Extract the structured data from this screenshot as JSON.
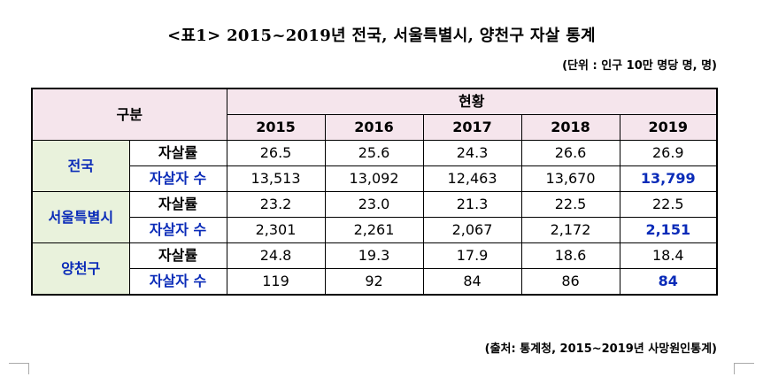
{
  "title": "<표1> 2015~2019년 전국, 서울특별시, 양천구 자살 통계",
  "unit_note": "(단위 : 인구 10만 명당 명, 명)",
  "table": {
    "category_header": "구분",
    "status_header": "현황",
    "years": [
      "2015",
      "2016",
      "2017",
      "2018",
      "2019"
    ],
    "regions": [
      {
        "name": "전국",
        "rows": [
          {
            "metric": "자살률",
            "values": [
              "26.5",
              "25.6",
              "24.3",
              "26.6",
              "26.9"
            ]
          },
          {
            "metric": "자살자 수",
            "values": [
              "13,513",
              "13,092",
              "12,463",
              "13,670",
              "13,799"
            ]
          }
        ]
      },
      {
        "name": "서울특별시",
        "rows": [
          {
            "metric": "자살률",
            "values": [
              "23.2",
              "23.0",
              "21.3",
              "22.5",
              "22.5"
            ]
          },
          {
            "metric": "자살자 수",
            "values": [
              "2,301",
              "2,261",
              "2,067",
              "2,172",
              "2,151"
            ]
          }
        ]
      },
      {
        "name": "양천구",
        "rows": [
          {
            "metric": "자살률",
            "values": [
              "24.8",
              "19.3",
              "17.9",
              "18.6",
              "18.4"
            ]
          },
          {
            "metric": "자살자 수",
            "values": [
              "119",
              "92",
              "84",
              "86",
              "84"
            ]
          }
        ]
      }
    ]
  },
  "source_note": "(출처: 통계청, 2015~2019년 사망원인통계)",
  "colors": {
    "header_bg": "#f5e5ec",
    "region_bg": "#e9f2dc",
    "accent_blue": "#0a2bb8"
  }
}
